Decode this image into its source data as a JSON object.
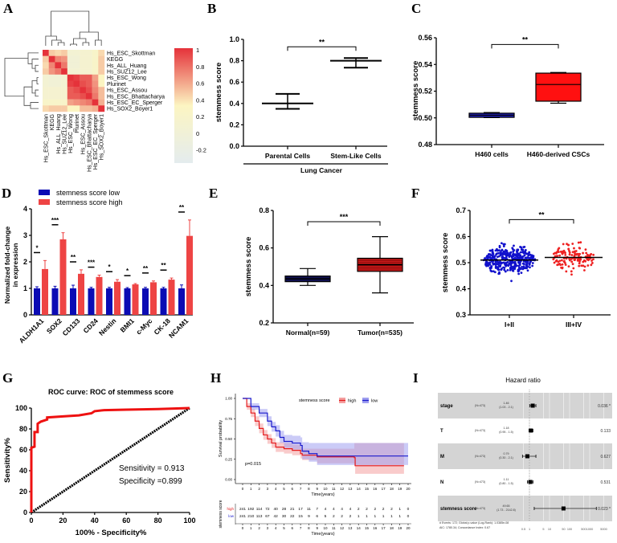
{
  "panels": {
    "A": "A",
    "B": "B",
    "C": "C",
    "D": "D",
    "E": "E",
    "F": "F",
    "G": "G",
    "H": "H",
    "I": "I"
  },
  "chart_data": [
    {
      "panel": "A",
      "type": "heatmap",
      "rows": [
        "Hs_ESC_Skottman",
        "KEGG",
        "Hs_ALL_Huang",
        "Hs_SUZ12_Lee",
        "Hs_ESC_Wong",
        "Plurinet",
        "Hs_ESC_Assou",
        "Hs_ESC_Bhattacharya",
        "Hs_ESC_EC_Sperger",
        "Hs_SOX2_Boyer1"
      ],
      "columns": [
        "Hs_ESC_Skottman",
        "KEGG",
        "Hs_ALL_Huang",
        "Hs_SUZ12_Lee",
        "Hs_ESC_Wong",
        "Plurinet",
        "Hs_ESC_Assou",
        "Hs_ESC_Bhattacharya",
        "Hs_ESC_EC_Sperger",
        "Hs_SOX2_Boyer1"
      ],
      "values": [
        [
          1,
          0.45,
          0.4,
          0.45,
          0.05,
          0.05,
          0.1,
          0.1,
          0.2,
          0.4
        ],
        [
          0.45,
          1,
          0.7,
          0.65,
          0,
          0,
          0.1,
          0.1,
          0.2,
          0.45
        ],
        [
          0.4,
          0.7,
          1,
          0.75,
          0,
          0,
          0.1,
          0.1,
          0.2,
          0.45
        ],
        [
          0.45,
          0.65,
          0.75,
          1,
          0.05,
          0.05,
          0.1,
          0.1,
          0.2,
          0.45
        ],
        [
          0.05,
          0,
          0,
          0.05,
          1,
          0.95,
          0.85,
          0.85,
          0.6,
          0.3
        ],
        [
          0.05,
          0,
          0,
          0.05,
          0.95,
          1,
          0.9,
          0.85,
          0.65,
          0.3
        ],
        [
          0.1,
          0.1,
          0.1,
          0.1,
          0.85,
          0.9,
          1,
          0.9,
          0.7,
          0.5
        ],
        [
          0.1,
          0.1,
          0.1,
          0.1,
          0.85,
          0.85,
          0.9,
          1,
          0.75,
          0.5
        ],
        [
          0.2,
          0.2,
          0.2,
          0.2,
          0.6,
          0.65,
          0.7,
          0.75,
          1,
          0.55
        ],
        [
          0.4,
          0.45,
          0.45,
          0.45,
          0.3,
          0.3,
          0.5,
          0.5,
          0.55,
          1
        ]
      ],
      "colorbar_ticks": [
        "1",
        "0.8",
        "0.6",
        "0.4",
        "0.2",
        "0",
        "-0.2"
      ],
      "colorbar_values": [
        1,
        0.8,
        0.6,
        0.4,
        0.2,
        0,
        -0.2
      ],
      "color_scale": {
        "low": "#e4ecee",
        "mid": "#fcf5c2",
        "high": "#e5323a"
      },
      "dendrogram": "rows and columns"
    },
    {
      "panel": "B",
      "type": "scatter",
      "ylabel": "stemmess score",
      "ylim": [
        0,
        1.0
      ],
      "yticks": [
        "0.0",
        "0.2",
        "0.4",
        "0.6",
        "0.8",
        "1.0"
      ],
      "yticks_values": [
        0,
        0.2,
        0.4,
        0.6,
        0.8,
        1.0
      ],
      "categories": [
        "Parental Cells",
        "Stem-Like Cells"
      ],
      "group_label": "Lung Cancer",
      "mean": [
        0.4,
        0.8
      ],
      "err_low": [
        0.35,
        0.735
      ],
      "err_high": [
        0.49,
        0.825
      ],
      "significance": "**"
    },
    {
      "panel": "C",
      "type": "box",
      "ylabel": "stemmess score",
      "ylim": [
        0.48,
        0.56
      ],
      "yticks": [
        "0.48",
        "0.50",
        "0.52",
        "0.54",
        "0.56"
      ],
      "yticks_values": [
        0.48,
        0.5,
        0.52,
        0.54,
        0.56
      ],
      "categories": [
        "H460 cells",
        "H460-derived CSCs"
      ],
      "min": [
        0.5002,
        0.511
      ],
      "q1": [
        0.5004,
        0.5125
      ],
      "median": [
        0.502,
        0.525
      ],
      "q3": [
        0.5035,
        0.5335
      ],
      "max": [
        0.504,
        0.534
      ],
      "colors": [
        "#1f1fb0",
        "#ff1010"
      ],
      "significance": "**"
    },
    {
      "panel": "D",
      "type": "bar",
      "ylabel": "Normalized fold-change\nin expression",
      "ylabel_lines": [
        "Normalized fold-change",
        "in expression"
      ],
      "ylim": [
        0,
        4
      ],
      "yticks": [
        "0",
        "1",
        "2",
        "3",
        "4"
      ],
      "yticks_values": [
        0,
        1,
        2,
        3,
        4
      ],
      "categories": [
        "ALDH1A1",
        "SOX2",
        "CD133",
        "CD24",
        "Nestin",
        "BMI1",
        "c-Myc",
        "CK-18",
        "NCAM1"
      ],
      "series": [
        {
          "name": "stemness score low",
          "color": "#0b0bb4",
          "values": [
            1,
            1,
            1,
            1,
            1,
            1,
            1,
            1,
            1
          ],
          "errors": [
            0.06,
            0.08,
            0.12,
            0.04,
            0.04,
            0.03,
            0.04,
            0.04,
            0.13
          ]
        },
        {
          "name": "stemness score high",
          "color": "#ee4444",
          "values": [
            1.73,
            2.85,
            1.55,
            1.43,
            1.25,
            1.15,
            1.23,
            1.33,
            2.98
          ],
          "errors": [
            0.32,
            0.25,
            0.15,
            0.07,
            0.08,
            0.03,
            0.05,
            0.06,
            0.6
          ]
        }
      ],
      "significance": [
        "*",
        "***",
        "**",
        "***",
        "*",
        "*",
        "**",
        "**",
        "**"
      ],
      "legend": "top-left"
    },
    {
      "panel": "E",
      "type": "box",
      "ylabel": "stemmess score",
      "ylim": [
        0.2,
        0.8
      ],
      "yticks": [
        "0.2",
        "0.4",
        "0.6",
        "0.8"
      ],
      "yticks_values": [
        0.2,
        0.4,
        0.6,
        0.8
      ],
      "categories": [
        "Normal(n=59)",
        "Tumor(n=535)"
      ],
      "min": [
        0.4,
        0.36
      ],
      "q1": [
        0.42,
        0.475
      ],
      "median": [
        0.435,
        0.51
      ],
      "q3": [
        0.45,
        0.545
      ],
      "max": [
        0.49,
        0.66
      ],
      "colors": [
        "#101050",
        "#e02020"
      ],
      "significance": "***"
    },
    {
      "panel": "F",
      "type": "scatter",
      "ylabel": "stemmess score",
      "ylim": [
        0.3,
        0.7
      ],
      "yticks": [
        "0.3",
        "0.4",
        "0.5",
        "0.6",
        "0.7"
      ],
      "yticks_values": [
        0.3,
        0.4,
        0.5,
        0.6,
        0.7
      ],
      "categories": [
        "I+II",
        "III+IV"
      ],
      "mean": [
        0.51,
        0.52
      ],
      "range_min": [
        0.385,
        0.4
      ],
      "range_max": [
        0.665,
        0.655
      ],
      "colors": [
        "#1111cc",
        "#ee2222"
      ],
      "significance": "**"
    },
    {
      "panel": "G",
      "type": "line",
      "title": "ROC curve: ROC of stemmess score",
      "xlabel": "100% - Specificity%",
      "ylabel": "Sensitivity%",
      "xlim": [
        0,
        100
      ],
      "ylim": [
        0,
        100
      ],
      "xticks": [
        "0",
        "20",
        "40",
        "60",
        "80",
        "100"
      ],
      "yticks": [
        "0",
        "20",
        "40",
        "60",
        "80",
        "100"
      ],
      "ticks_values": [
        0,
        20,
        40,
        60,
        80,
        100
      ],
      "roc_x": [
        0,
        0,
        2,
        2,
        4,
        4,
        6,
        10,
        10,
        20,
        30,
        38,
        40,
        46,
        60,
        80,
        100
      ],
      "roc_y": [
        0,
        62,
        63,
        77,
        77,
        85,
        87,
        89,
        91,
        92,
        93,
        95,
        97,
        98,
        98.5,
        99,
        100
      ],
      "reference_x": [
        0,
        100
      ],
      "reference_y": [
        0,
        100
      ],
      "annotations": [
        "Sensitivity = 0.913",
        "Specificity =0.899"
      ]
    },
    {
      "panel": "H",
      "type": "line",
      "xlabel": "Time(years)",
      "ylabel": "Survival probability",
      "xlim": [
        0,
        20
      ],
      "ylim": [
        0,
        1
      ],
      "xticks": [
        "0",
        "1",
        "2",
        "3",
        "4",
        "5",
        "6",
        "7",
        "8",
        "9",
        "10",
        "11",
        "12",
        "13",
        "14",
        "15",
        "16",
        "17",
        "18",
        "19",
        "20"
      ],
      "yticks": [
        "0.00",
        "0.25",
        "0.50",
        "0.75",
        "1.00"
      ],
      "yticks_values": [
        0,
        0.25,
        0.5,
        0.75,
        1
      ],
      "legend_title": "stemness score",
      "pvalue": "p=0.015",
      "series": [
        {
          "name": "high",
          "color": "#e41a1c",
          "band": "#f4a0a0",
          "t": [
            0,
            0.5,
            1,
            1.5,
            2,
            2.5,
            3,
            3.5,
            4,
            5,
            6,
            7,
            7.2,
            9,
            13.5,
            13.6,
            19.5
          ],
          "s": [
            1,
            0.9,
            0.82,
            0.72,
            0.63,
            0.55,
            0.5,
            0.45,
            0.4,
            0.38,
            0.36,
            0.32,
            0.3,
            0.28,
            0.27,
            0.17,
            0.17
          ],
          "ci_lower": [
            1,
            0.86,
            0.77,
            0.66,
            0.57,
            0.49,
            0.44,
            0.39,
            0.34,
            0.32,
            0.3,
            0.26,
            0.24,
            0.2,
            0.17,
            0.07,
            0.07
          ],
          "ci_upper": [
            1,
            0.94,
            0.87,
            0.78,
            0.69,
            0.61,
            0.56,
            0.51,
            0.46,
            0.45,
            0.43,
            0.4,
            0.38,
            0.38,
            0.45,
            0.45,
            0.45
          ]
        },
        {
          "name": "low",
          "color": "#1a1acc",
          "band": "#a0a0f0",
          "t": [
            0,
            1,
            2,
            3,
            3.5,
            4,
            4.5,
            5,
            6,
            7,
            7.2,
            8,
            9,
            20
          ],
          "s": [
            1,
            0.9,
            0.82,
            0.72,
            0.65,
            0.6,
            0.52,
            0.47,
            0.45,
            0.42,
            0.35,
            0.32,
            0.29,
            0.29
          ],
          "ci_lower": [
            1,
            0.86,
            0.77,
            0.66,
            0.59,
            0.53,
            0.45,
            0.39,
            0.37,
            0.33,
            0.25,
            0.22,
            0.18,
            0.18
          ],
          "ci_upper": [
            1,
            0.94,
            0.87,
            0.78,
            0.71,
            0.67,
            0.6,
            0.55,
            0.54,
            0.52,
            0.46,
            0.45,
            0.45,
            0.45
          ]
        }
      ],
      "risk_table": {
        "ylabel": "stemness score",
        "rows": [
          {
            "name": "high",
            "color": "#e41a1c",
            "values": [
              "241",
              "192",
              "114",
              "72",
              "40",
              "28",
              "21",
              "17",
              "11",
              "7",
              "4",
              "4",
              "4",
              "4",
              "2",
              "2",
              "2",
              "2",
              "2",
              "1",
              "0"
            ]
          },
          {
            "name": "low",
            "color": "#1a1acc",
            "values": [
              "241",
              "210",
              "113",
              "67",
              "42",
              "30",
              "22",
              "15",
              "9",
              "6",
              "5",
              "2",
              "2",
              "2",
              "1",
              "1",
              "1",
              "1",
              "1",
              "1",
              "0"
            ]
          }
        ]
      }
    },
    {
      "panel": "I",
      "type": "forest",
      "title": "Hazard ratio",
      "rows": [
        {
          "label": "stage",
          "n": "(N=473)",
          "hr": "1.46",
          "ci": "(1.03 - 2.1)",
          "hr_value": 1.46,
          "lo": 1.03,
          "hi": 2.1,
          "p": "0.036 *"
        },
        {
          "label": "T",
          "n": "(N=473)",
          "hr": "1.18",
          "ci": "(0.95 - 1.5)",
          "hr_value": 1.18,
          "lo": 0.95,
          "hi": 1.5,
          "p": "0.133"
        },
        {
          "label": "M",
          "n": "(N=473)",
          "hr": "0.79",
          "ci": "(0.30 - 2.1)",
          "hr_value": 0.79,
          "lo": 0.3,
          "hi": 2.1,
          "p": "0.627"
        },
        {
          "label": "N",
          "n": "(N=473)",
          "hr": "1.11",
          "ci": "(0.80 - 1.5)",
          "hr_value": 1.11,
          "lo": 0.8,
          "hi": 1.5,
          "p": "0.531"
        },
        {
          "label": "stemness score",
          "n": "(N=473)",
          "hr": "49.65",
          "ci": "(1.73 - 2142.8)",
          "hr_value": 49.65,
          "lo": 1.73,
          "hi": 2142.8,
          "p": "0.023 *"
        }
      ],
      "xscale": "log",
      "xticks": [
        "0.5",
        "1",
        "5",
        "10",
        "50",
        "100",
        "500",
        "1000",
        "5000"
      ],
      "xticks_values": [
        0.5,
        1,
        5,
        10,
        50,
        100,
        500,
        1000,
        5000
      ],
      "footer": [
        "# Events: 172; Global p-value (Log-Rank): 1.0385e-08",
        "AIC: 1780.34; Concordance Index: 0.67"
      ]
    }
  ]
}
